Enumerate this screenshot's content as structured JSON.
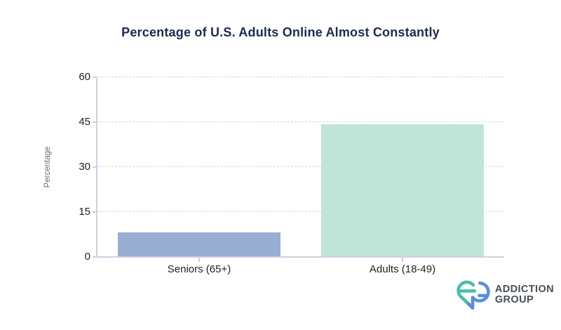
{
  "chart_data": {
    "type": "bar",
    "categories": [
      "Seniors (65+)",
      "Adults (18-49)"
    ],
    "values": [
      8,
      44
    ],
    "bar_colors": [
      "#99AED3",
      "#BFE5D9"
    ],
    "title": "Percentage of U.S. Adults Online Almost Constantly",
    "xlabel": "",
    "ylabel": "Percentage",
    "ylim": [
      0,
      60
    ],
    "yticks": [
      0,
      15,
      30,
      45,
      60
    ],
    "grid": "horizontal-dashed",
    "legend": "none"
  },
  "colors": {
    "title_text": "#1B2B4D",
    "axis_line": "#CCD2E0",
    "gridline": "#D7D7DE",
    "tick_label": "#1F1F1F",
    "axis_title_text": "#6B6B6B",
    "background": "#FFFFFF"
  },
  "logo": {
    "line1": "ADDICTION",
    "line2": "GROUP",
    "text_color": "#474E57",
    "icon_teal": "#4FBCAB",
    "icon_blue": "#5A8EDD"
  }
}
